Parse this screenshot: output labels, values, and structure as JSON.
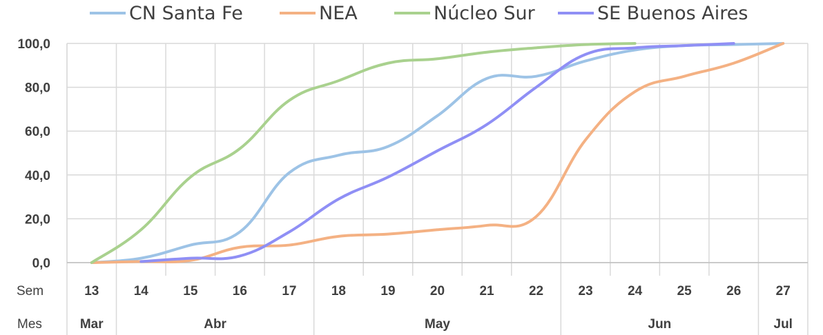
{
  "chart_data": {
    "type": "line",
    "title": "",
    "xlabel": "",
    "ylabel": "",
    "ylim": [
      0,
      100
    ],
    "y_ticks": [
      "0,0",
      "20,0",
      "40,0",
      "60,0",
      "80,0",
      "100,0"
    ],
    "row_labels": {
      "weeks": "Sem",
      "months": "Mes"
    },
    "weeks": [
      "13",
      "14",
      "15",
      "16",
      "17",
      "18",
      "19",
      "20",
      "21",
      "22",
      "23",
      "24",
      "25",
      "26",
      "27"
    ],
    "months": [
      {
        "label": "Mar",
        "weeks": [
          "13"
        ]
      },
      {
        "label": "Abr",
        "weeks": [
          "14",
          "15",
          "16",
          "17"
        ]
      },
      {
        "label": "May",
        "weeks": [
          "18",
          "19",
          "20",
          "21",
          "22"
        ]
      },
      {
        "label": "Jun",
        "weeks": [
          "23",
          "24",
          "25",
          "26"
        ]
      },
      {
        "label": "Jul",
        "weeks": [
          "27"
        ]
      }
    ],
    "grid": true,
    "legend_position": "top",
    "series": [
      {
        "name": "CN Santa Fe",
        "color": "#9dc3e6",
        "x": [
          "13",
          "14",
          "15",
          "16",
          "17",
          "18",
          "19",
          "20",
          "21",
          "22",
          "23",
          "24",
          "25",
          "26",
          "27"
        ],
        "values": [
          0,
          2,
          8,
          14,
          41,
          49,
          53,
          67,
          84,
          85,
          92,
          97,
          99,
          99.5,
          100
        ]
      },
      {
        "name": "NEA",
        "color": "#f4b183",
        "x": [
          "13",
          "14",
          "15",
          "16",
          "17",
          "18",
          "19",
          "20",
          "21",
          "22",
          "23",
          "24",
          "25",
          "26",
          "27"
        ],
        "values": [
          0,
          0.5,
          1,
          7,
          8,
          12,
          13,
          15,
          17,
          21,
          56,
          78,
          85,
          91,
          100
        ]
      },
      {
        "name": "Núcleo Sur",
        "color": "#a9d18e",
        "x": [
          "13",
          "14",
          "15",
          "16",
          "17",
          "18",
          "19",
          "20",
          "21",
          "22",
          "23",
          "24"
        ],
        "values": [
          0,
          15,
          39,
          52,
          74,
          83,
          91,
          93,
          96,
          98,
          99.5,
          100
        ]
      },
      {
        "name": "SE Buenos Aires",
        "color": "#8f8ff5",
        "x": [
          "14",
          "15",
          "16",
          "17",
          "18",
          "19",
          "20",
          "21",
          "22",
          "23",
          "24",
          "25",
          "26"
        ],
        "values": [
          0.5,
          2,
          3,
          14,
          29,
          39,
          51,
          63,
          80,
          95,
          98,
          99,
          100
        ]
      }
    ]
  }
}
